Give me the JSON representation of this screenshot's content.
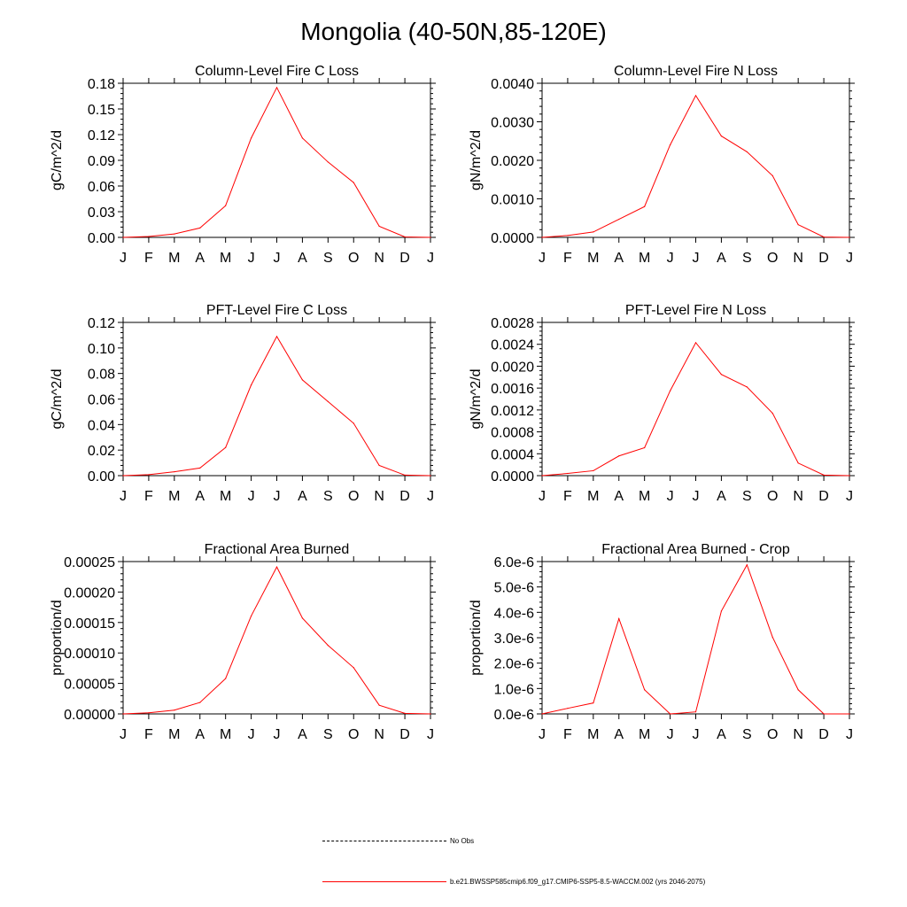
{
  "figure": {
    "title": "Mongolia (40-50N,85-120E)"
  },
  "legend": {
    "obs_label": "No Obs",
    "model_label": "b.e21.BWSSP585cmip6.f09_g17.CMIP6-SSP5-8.5-WACCM.002 (yrs 2046-2075)",
    "model_color": "#ff0000",
    "obs_color": "#000000"
  },
  "chart_data": [
    {
      "type": "line",
      "title": "Column-Level Fire C Loss",
      "ylabel": "gC/m^2/d",
      "categories": [
        "J",
        "F",
        "M",
        "A",
        "M",
        "J",
        "J",
        "A",
        "S",
        "O",
        "N",
        "D",
        "J"
      ],
      "series": [
        {
          "values": [
            0.0,
            0.001,
            0.004,
            0.011,
            0.037,
            0.116,
            0.175,
            0.116,
            0.088,
            0.064,
            0.013,
            0.0005,
            0.0
          ]
        }
      ],
      "ylim": [
        0,
        0.18
      ],
      "yticks": [
        "0.00",
        "0.03",
        "0.06",
        "0.09",
        "0.12",
        "0.15",
        "0.18"
      ]
    },
    {
      "type": "line",
      "title": "Column-Level Fire N Loss",
      "ylabel": "gN/m^2/d",
      "categories": [
        "J",
        "F",
        "M",
        "A",
        "M",
        "J",
        "J",
        "A",
        "S",
        "O",
        "N",
        "D",
        "J"
      ],
      "series": [
        {
          "values": [
            0.0,
            5e-05,
            0.00014,
            0.00047,
            0.0008,
            0.0024,
            0.00368,
            0.00263,
            0.00222,
            0.0016,
            0.00033,
            1e-05,
            0.0
          ]
        }
      ],
      "ylim": [
        0,
        0.004
      ],
      "yticks": [
        "0.0000",
        "0.0010",
        "0.0020",
        "0.0030",
        "0.0040"
      ]
    },
    {
      "type": "line",
      "title": "PFT-Level Fire C Loss",
      "ylabel": "gC/m^2/d",
      "categories": [
        "J",
        "F",
        "M",
        "A",
        "M",
        "J",
        "J",
        "A",
        "S",
        "O",
        "N",
        "D",
        "J"
      ],
      "series": [
        {
          "values": [
            0.0,
            0.0008,
            0.003,
            0.006,
            0.022,
            0.071,
            0.109,
            0.075,
            0.058,
            0.041,
            0.008,
            0.0004,
            0.0
          ]
        }
      ],
      "ylim": [
        0,
        0.12
      ],
      "yticks": [
        "0.00",
        "0.02",
        "0.04",
        "0.06",
        "0.08",
        "0.10",
        "0.12"
      ]
    },
    {
      "type": "line",
      "title": "PFT-Level Fire N Loss",
      "ylabel": "gN/m^2/d",
      "categories": [
        "J",
        "F",
        "M",
        "A",
        "M",
        "J",
        "J",
        "A",
        "S",
        "O",
        "N",
        "D",
        "J"
      ],
      "series": [
        {
          "values": [
            0.0,
            4e-05,
            9e-05,
            0.00036,
            0.00051,
            0.00155,
            0.00243,
            0.00185,
            0.00162,
            0.00114,
            0.00023,
            1e-05,
            0.0
          ]
        }
      ],
      "ylim": [
        0,
        0.0028
      ],
      "yticks": [
        "0.0000",
        "0.0004",
        "0.0008",
        "0.0012",
        "0.0016",
        "0.0020",
        "0.0024",
        "0.0028"
      ]
    },
    {
      "type": "line",
      "title": "Fractional Area Burned",
      "ylabel": "proportion/d",
      "categories": [
        "J",
        "F",
        "M",
        "A",
        "M",
        "J",
        "J",
        "A",
        "S",
        "O",
        "N",
        "D",
        "J"
      ],
      "series": [
        {
          "values": [
            0.0,
            2e-06,
            7e-06,
            2.1e-05,
            6.5e-05,
            0.00018,
            0.00027,
            0.000176,
            0.000126,
            8.5e-05,
            1.6e-05,
            1e-06,
            0.0
          ]
        }
      ],
      "ylim": [
        0,
        0.00028
      ],
      "yticks": [
        "0.00000",
        "0.00005",
        "0.00010",
        "0.00015",
        "0.00020",
        "0.00025"
      ]
    },
    {
      "type": "line",
      "title": "Fractional Area Burned - Crop",
      "ylabel": "proportion/d",
      "categories": [
        "J",
        "F",
        "M",
        "A",
        "M",
        "J",
        "J",
        "A",
        "S",
        "O",
        "N",
        "D",
        "J"
      ],
      "series": [
        {
          "values": [
            0.0,
            2.2e-07,
            4.3e-07,
            3.75e-06,
            9.5e-07,
            0.0,
            8e-08,
            4.05e-06,
            5.87e-06,
            3.02e-06,
            9.5e-07,
            0.0,
            0.0
          ]
        }
      ],
      "ylim": [
        0,
        6e-06
      ],
      "yticks": [
        "0.0e-6",
        "1.0e-6",
        "2.0e-6",
        "3.0e-6",
        "4.0e-6",
        "5.0e-6",
        "6.0e-6"
      ]
    }
  ]
}
